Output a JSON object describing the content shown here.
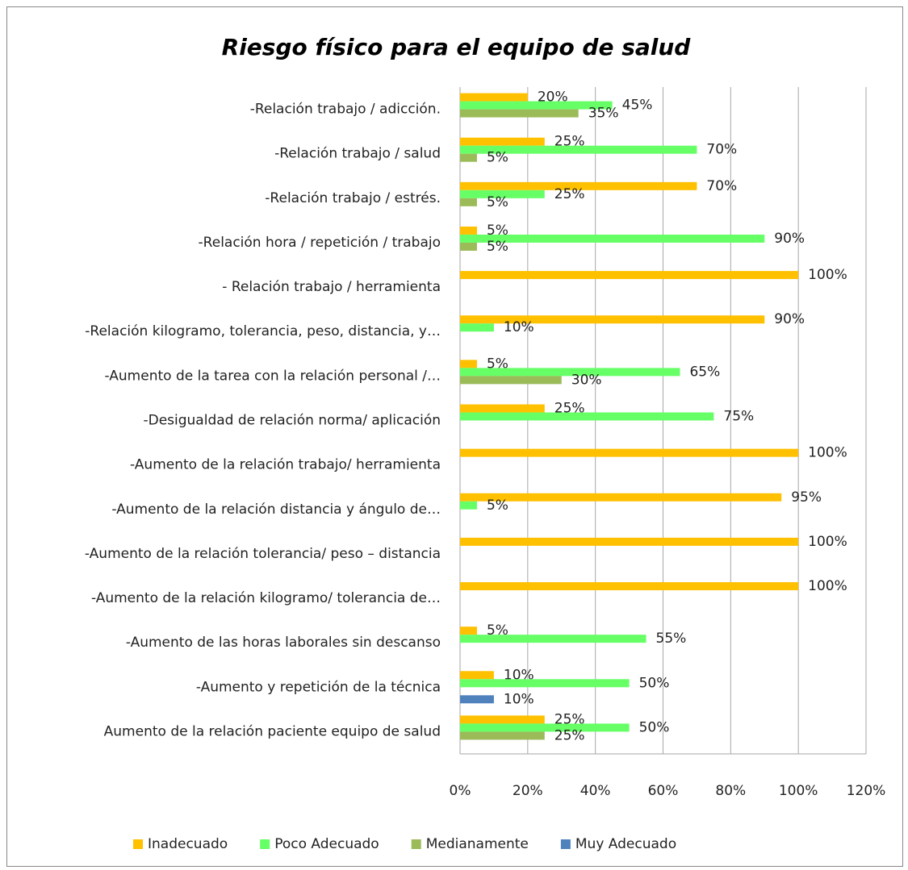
{
  "chart_data": {
    "type": "barh",
    "title": "Riesgo físico para el equipo de salud",
    "categories": [
      "-Relación trabajo / adicción.",
      "-Relación trabajo / salud",
      "-Relación trabajo / estrés.",
      "-Relación hora / repetición / trabajo",
      "- Relación trabajo / herramienta",
      "-Relación kilogramo, tolerancia, peso, distancia, y…",
      "-Aumento de la tarea con la relación personal /…",
      "-Desigualdad de relación norma/ aplicación",
      "-Aumento de la relación trabajo/ herramienta",
      "-Aumento de la relación distancia y ángulo de…",
      "-Aumento de la relación tolerancia/ peso – distancia",
      "-Aumento de la relación kilogramo/ tolerancia de…",
      "-Aumento de las horas laborales sin descanso",
      "-Aumento y repetición de la técnica",
      "Aumento de la relación paciente equipo de salud"
    ],
    "series": [
      {
        "name": "Inadecuado",
        "color": "#ffc000",
        "values": [
          20,
          25,
          70,
          5,
          100,
          90,
          5,
          25,
          100,
          95,
          100,
          100,
          5,
          10,
          25
        ],
        "value_labels": [
          "20%",
          "25%",
          "70%",
          "5%",
          "100%",
          "90%",
          "5%",
          "25%",
          "100%",
          "95%",
          "100%",
          "100%",
          "5%",
          "10%",
          "25%"
        ]
      },
      {
        "name": "Poco Adecuado",
        "color": "#66ff66",
        "values": [
          45,
          70,
          25,
          90,
          null,
          10,
          65,
          75,
          null,
          5,
          null,
          null,
          55,
          50,
          50
        ],
        "value_labels": [
          "45%",
          "70%",
          "25%",
          "90%",
          null,
          "10%",
          "65%",
          "75%",
          null,
          "5%",
          null,
          null,
          "55%",
          "50%",
          "50%"
        ]
      },
      {
        "name": "Medianamente",
        "color": "#9bbb59",
        "values": [
          35,
          5,
          5,
          5,
          null,
          null,
          30,
          null,
          null,
          null,
          null,
          null,
          null,
          null,
          25
        ],
        "value_labels": [
          "35%",
          "5%",
          "5%",
          "5%",
          null,
          null,
          "30%",
          null,
          null,
          null,
          null,
          null,
          null,
          null,
          "25%"
        ]
      },
      {
        "name": "Muy Adecuado",
        "color": "#4f81bd",
        "values": [
          null,
          null,
          null,
          null,
          null,
          null,
          null,
          null,
          null,
          null,
          null,
          null,
          null,
          10,
          null
        ],
        "value_labels": [
          null,
          null,
          null,
          null,
          null,
          null,
          null,
          null,
          null,
          null,
          null,
          null,
          null,
          "10%",
          null
        ]
      }
    ],
    "xlim": [
      0,
      120
    ],
    "xticks": [
      {
        "value": 0,
        "label": "0%"
      },
      {
        "value": 20,
        "label": "20%"
      },
      {
        "value": 40,
        "label": "40%"
      },
      {
        "value": 60,
        "label": "60%"
      },
      {
        "value": 80,
        "label": "80%"
      },
      {
        "value": 100,
        "label": "100%"
      },
      {
        "value": 120,
        "label": "120%"
      }
    ],
    "grid": true,
    "legend": "bottom"
  }
}
